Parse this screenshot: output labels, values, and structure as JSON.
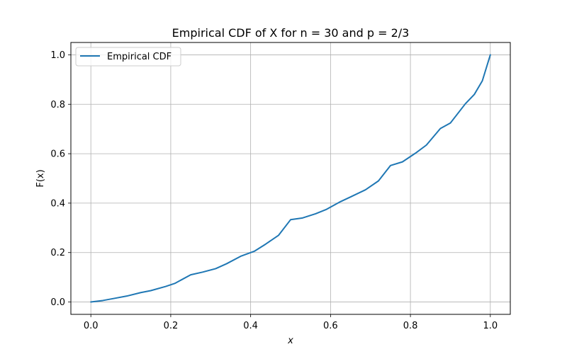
{
  "chart_data": {
    "type": "line",
    "title": "Empirical CDF of X for n = 30 and p = 2/3",
    "xlabel": "x",
    "ylabel": "F(x)",
    "xlim": [
      -0.05,
      1.05
    ],
    "ylim": [
      -0.05,
      1.05
    ],
    "xticks": [
      0.0,
      0.2,
      0.4,
      0.6,
      0.8,
      1.0
    ],
    "xtick_labels": [
      "0.0",
      "0.2",
      "0.4",
      "0.6",
      "0.8",
      "1.0"
    ],
    "yticks": [
      0.0,
      0.2,
      0.4,
      0.6,
      0.8,
      1.0
    ],
    "ytick_labels": [
      "0.0",
      "0.2",
      "0.4",
      "0.6",
      "0.8",
      "1.0"
    ],
    "grid": true,
    "legend_position": "upper-left",
    "series": [
      {
        "name": "Empirical CDF",
        "color": "#1f77b4",
        "x": [
          0.0,
          0.03,
          0.06,
          0.09,
          0.125,
          0.15,
          0.1875,
          0.21,
          0.25,
          0.28,
          0.3125,
          0.34,
          0.375,
          0.41,
          0.4375,
          0.47,
          0.5,
          0.53,
          0.5625,
          0.59,
          0.625,
          0.65,
          0.6875,
          0.72,
          0.75,
          0.78,
          0.8125,
          0.84,
          0.875,
          0.9,
          0.9375,
          0.96,
          0.98,
          1.0
        ],
        "y": [
          0.0,
          0.006,
          0.015,
          0.024,
          0.038,
          0.046,
          0.063,
          0.075,
          0.11,
          0.121,
          0.135,
          0.155,
          0.185,
          0.206,
          0.234,
          0.27,
          0.333,
          0.34,
          0.357,
          0.375,
          0.406,
          0.425,
          0.454,
          0.49,
          0.552,
          0.567,
          0.602,
          0.635,
          0.702,
          0.724,
          0.802,
          0.84,
          0.895,
          1.0
        ]
      }
    ]
  }
}
